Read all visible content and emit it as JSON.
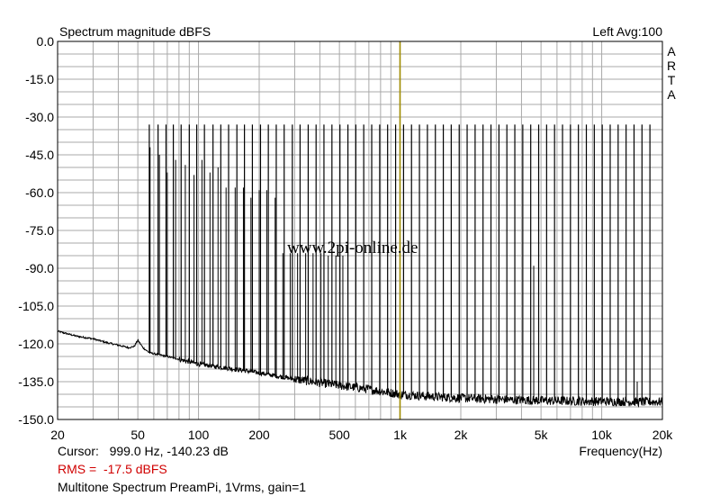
{
  "chart_data": {
    "type": "line",
    "title": "Spectrum magnitude dBFS",
    "channel_info": "Left  Avg:100",
    "brand": "ARTA",
    "watermark": "www.2pi-online.de",
    "xlabel": "Frequency(Hz)",
    "ylabel": "",
    "x_scale": "log",
    "xlim": [
      20,
      20000
    ],
    "ylim": [
      -150,
      0
    ],
    "grid": true,
    "x_ticks": [
      {
        "value": 20,
        "label": "20"
      },
      {
        "value": 50,
        "label": "50"
      },
      {
        "value": 100,
        "label": "100"
      },
      {
        "value": 200,
        "label": "200"
      },
      {
        "value": 500,
        "label": "500"
      },
      {
        "value": 1000,
        "label": "1k"
      },
      {
        "value": 2000,
        "label": "2k"
      },
      {
        "value": 5000,
        "label": "5k"
      },
      {
        "value": 10000,
        "label": "10k"
      },
      {
        "value": 20000,
        "label": "20k"
      }
    ],
    "y_ticks": [
      {
        "value": 0,
        "label": "0.0"
      },
      {
        "value": -15,
        "label": "-15.0"
      },
      {
        "value": -30,
        "label": "-30.0"
      },
      {
        "value": -45,
        "label": "-45.0"
      },
      {
        "value": -60,
        "label": "-60.0"
      },
      {
        "value": -75,
        "label": "-75.0"
      },
      {
        "value": -90,
        "label": "-90.0"
      },
      {
        "value": -105,
        "label": "-105.0"
      },
      {
        "value": -120,
        "label": "-120.0"
      },
      {
        "value": -135,
        "label": "-135.0"
      },
      {
        "value": -150,
        "label": "-150.0"
      }
    ],
    "cursor": {
      "freq": 999.0,
      "level": -140.23
    },
    "series": [
      {
        "kind": "tones",
        "x": [
          57,
          63,
          69,
          75,
          82,
          90,
          98,
          107,
          118,
          129,
          141,
          155,
          169,
          185,
          203,
          222,
          243,
          266,
          292,
          319,
          350,
          383,
          419,
          459,
          503,
          551,
          603,
          660,
          723,
          792,
          867,
          950,
          1040,
          1139,
          1247,
          1366,
          1496,
          1638,
          1793,
          1964,
          2150,
          2355,
          2578,
          2823,
          3092,
          3385,
          3707,
          4059,
          4445,
          4867,
          5330,
          5836,
          6391,
          6998,
          7663,
          8391,
          9188,
          10061,
          11017,
          12064,
          13210,
          14466,
          15840,
          17345
        ],
        "y": [
          -33,
          -33,
          -33,
          -33,
          -33,
          -33,
          -33,
          -33,
          -33,
          -33,
          -33,
          -33,
          -33,
          -33,
          -33,
          -33,
          -33,
          -33,
          -33,
          -33,
          -33,
          -33,
          -33,
          -33,
          -33,
          -33,
          -33,
          -33,
          -33,
          -33,
          -33,
          -33,
          -33,
          -33,
          -33,
          -33,
          -33,
          -33,
          -33,
          -33,
          -33,
          -33,
          -33,
          -33,
          -33,
          -33,
          -33,
          -33,
          -33,
          -33,
          -33,
          -33,
          -33,
          -33,
          -33,
          -33,
          -33,
          -33,
          -33,
          -33,
          -33,
          -33,
          -33,
          -33
        ]
      },
      {
        "kind": "harmonics",
        "x": [
          57.5,
          64,
          70,
          77,
          86,
          95,
          104,
          114,
          125,
          137,
          152,
          167,
          182,
          200,
          218,
          240,
          262,
          285,
          310,
          340,
          370,
          405,
          440,
          480,
          520,
          4600,
          15000
        ],
        "y": [
          -42,
          -45,
          -52,
          -47,
          -49,
          -53,
          -47,
          -52,
          -50,
          -58,
          -58,
          -58,
          -62,
          -59,
          -59,
          -62,
          -84,
          -84,
          -84,
          -84,
          -84,
          -84,
          -85,
          -85,
          -85,
          -89,
          -135
        ]
      },
      {
        "kind": "noise_floor",
        "x": [
          20,
          25,
          30,
          35,
          40,
          45,
          48,
          50,
          53,
          57,
          70,
          100,
          150,
          200,
          300,
          500,
          700,
          1000,
          1500,
          2000,
          3000,
          5000,
          7000,
          10000,
          15000,
          20000
        ],
        "y": [
          -115,
          -117,
          -118,
          -119.5,
          -120.5,
          -121.5,
          -121,
          -118.5,
          -121.5,
          -123.5,
          -125,
          -128,
          -130,
          -131.5,
          -134,
          -136.5,
          -138,
          -140,
          -141,
          -141.5,
          -142,
          -142.5,
          -142.7,
          -142.8,
          -143,
          -143
        ]
      }
    ]
  },
  "footer": {
    "cursor_line": "Cursor:   999.0 Hz, -140.23 dB",
    "rms_line": "RMS =  -17.5 dBFS",
    "description": "Multitone Spectrum PreamPi, 1Vrms, gain=1"
  }
}
